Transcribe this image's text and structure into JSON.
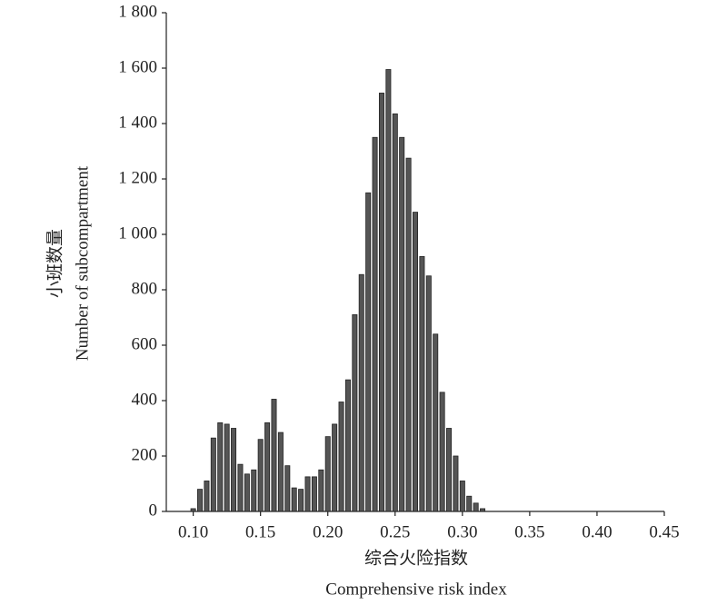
{
  "chart_data": {
    "type": "histogram",
    "xlabel": [
      "综合火险指数",
      "Comprehensive risk index"
    ],
    "ylabel": [
      "小班数量",
      "Number of subcompartment"
    ],
    "bins": [
      0.0975,
      0.1025,
      0.1075,
      0.1125,
      0.1175,
      0.1225,
      0.1275,
      0.1325,
      0.1375,
      0.1425,
      0.1475,
      0.1525,
      0.1575,
      0.1625,
      0.1675,
      0.1725,
      0.1775,
      0.1825,
      0.1875,
      0.1925,
      0.1975,
      0.2025,
      0.2075,
      0.2125,
      0.2175,
      0.2225,
      0.2275,
      0.2325,
      0.2375,
      0.2425,
      0.2475,
      0.2525,
      0.2575,
      0.2625,
      0.2675,
      0.2725,
      0.2775,
      0.2825,
      0.2875,
      0.2925,
      0.2975,
      0.3025,
      0.3075,
      0.3125,
      0.3175
    ],
    "values": [
      10,
      80,
      110,
      265,
      320,
      315,
      300,
      170,
      135,
      150,
      260,
      320,
      405,
      285,
      165,
      85,
      80,
      125,
      125,
      150,
      270,
      315,
      395,
      475,
      710,
      855,
      1150,
      1350,
      1510,
      1595,
      1435,
      1350,
      1275,
      1080,
      920,
      850,
      640,
      430,
      300,
      200,
      110,
      55,
      30,
      10
    ],
    "color": "#555555",
    "xlim": [
      0.08,
      0.45
    ],
    "ylim": [
      0,
      1800
    ],
    "xticks": [
      {
        "value": 0.1,
        "label": "0.10"
      },
      {
        "value": 0.15,
        "label": "0.15"
      },
      {
        "value": 0.2,
        "label": "0.20"
      },
      {
        "value": 0.25,
        "label": "0.25"
      },
      {
        "value": 0.3,
        "label": "0.30"
      },
      {
        "value": 0.35,
        "label": "0.35"
      },
      {
        "value": 0.4,
        "label": "0.40"
      },
      {
        "value": 0.45,
        "label": "0.45"
      }
    ],
    "yticks": [
      0,
      200,
      400,
      600,
      800,
      {
        "value": 1000,
        "label": "1 000"
      },
      {
        "value": 1200,
        "label": "1 200"
      },
      {
        "value": 1400,
        "label": "1 400"
      },
      {
        "value": 1600,
        "label": "1 600"
      },
      {
        "value": 1800,
        "label": "1 800"
      }
    ],
    "grid": false
  }
}
